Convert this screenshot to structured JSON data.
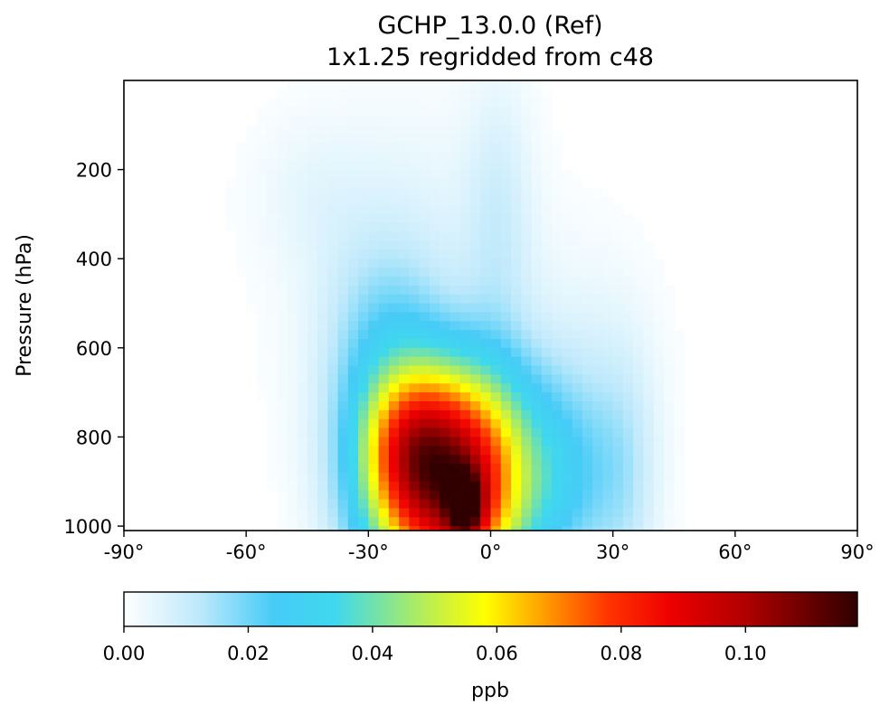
{
  "chart_data": {
    "type": "heatmap",
    "title_lines": [
      "GCHP_13.0.0 (Ref)",
      "1x1.25 regridded from c48"
    ],
    "xlabel": "",
    "ylabel": "Pressure (hPa)",
    "x_ticks": [
      -90,
      -60,
      -30,
      0,
      30,
      60,
      90
    ],
    "x_tick_labels": [
      "-90°",
      "-60°",
      "-30°",
      "0°",
      "30°",
      "60°",
      "90°"
    ],
    "y_ticks": [
      200,
      400,
      600,
      800,
      1000
    ],
    "y_tick_labels": [
      "200",
      "400",
      "600",
      "800",
      "1000"
    ],
    "xlim": [
      -90,
      90
    ],
    "ylim": [
      1010,
      0
    ],
    "y_inverted": true,
    "colorbar": {
      "label": "ppb",
      "range": [
        0,
        0.118
      ],
      "ticks": [
        0.0,
        0.02,
        0.04,
        0.06,
        0.08,
        0.1
      ],
      "tick_labels": [
        "0.00",
        "0.02",
        "0.04",
        "0.06",
        "0.08",
        "0.10"
      ],
      "colormap_stops": [
        {
          "v": 0.0,
          "color": "#ffffff"
        },
        {
          "v": 0.012,
          "color": "#bfe9fb"
        },
        {
          "v": 0.024,
          "color": "#46cbf7"
        },
        {
          "v": 0.034,
          "color": "#3fd8ee"
        },
        {
          "v": 0.042,
          "color": "#7fe49a"
        },
        {
          "v": 0.05,
          "color": "#c4f046"
        },
        {
          "v": 0.058,
          "color": "#ffff00"
        },
        {
          "v": 0.068,
          "color": "#ff9a00"
        },
        {
          "v": 0.078,
          "color": "#ff3300"
        },
        {
          "v": 0.088,
          "color": "#ee0000"
        },
        {
          "v": 0.1,
          "color": "#b00000"
        },
        {
          "v": 0.118,
          "color": "#300000"
        }
      ]
    },
    "features": [
      {
        "lat": -17,
        "p": 930,
        "slat": 12,
        "sp": 170,
        "amp": 0.06
      },
      {
        "lat": -4,
        "p": 925,
        "slat": 10,
        "sp": 165,
        "amp": 0.055
      },
      {
        "lat": -20,
        "p": 820,
        "slat": 8,
        "sp": 110,
        "amp": 0.028
      },
      {
        "lat": -10,
        "p": 740,
        "slat": 16,
        "sp": 130,
        "amp": 0.018
      },
      {
        "lat": -6,
        "p": 960,
        "slat": 3,
        "sp": 55,
        "amp": 0.04
      },
      {
        "lat": 17,
        "p": 910,
        "slat": 9,
        "sp": 150,
        "amp": 0.02
      },
      {
        "lat": 33,
        "p": 900,
        "slat": 6,
        "sp": 200,
        "amp": 0.01
      },
      {
        "lat": -26,
        "p": 580,
        "slat": 10,
        "sp": 150,
        "amp": 0.013
      },
      {
        "lat": -22,
        "p": 380,
        "slat": 18,
        "sp": 220,
        "amp": 0.006
      },
      {
        "lat": 2,
        "p": 330,
        "slat": 6,
        "sp": 240,
        "amp": 0.008
      },
      {
        "lat": -45,
        "p": 250,
        "slat": 10,
        "sp": 120,
        "amp": 0.003
      },
      {
        "lat": 22,
        "p": 650,
        "slat": 12,
        "sp": 200,
        "amp": 0.005
      }
    ]
  }
}
